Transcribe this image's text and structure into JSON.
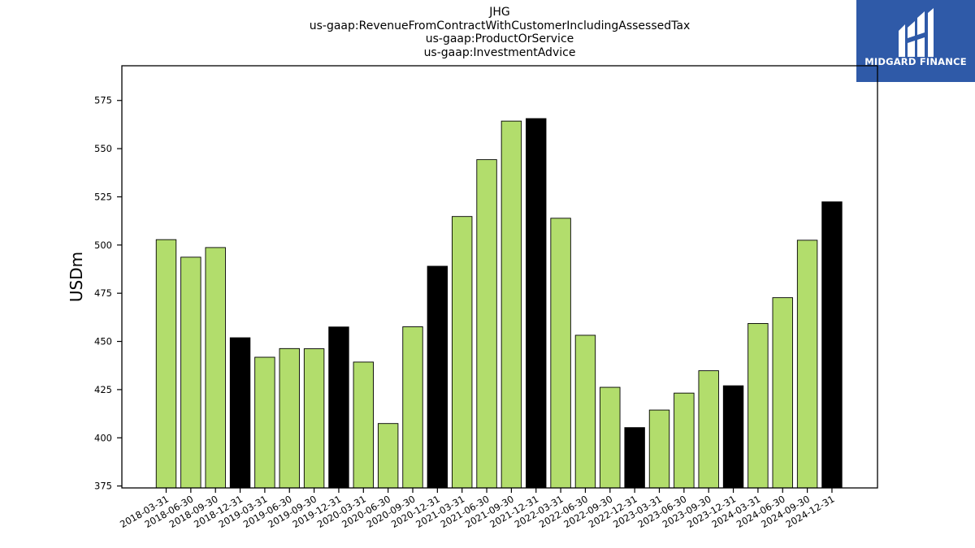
{
  "chart_data": {
    "type": "bar",
    "title_lines": [
      "JHG",
      "us-gaap:RevenueFromContractWithCustomerIncludingAssessedTax",
      "us-gaap:ProductOrService",
      "us-gaap:InvestmentAdvice"
    ],
    "xlabel": "",
    "ylabel": "USDm",
    "ylim": [
      374,
      593
    ],
    "yticks": [
      375,
      400,
      425,
      450,
      475,
      500,
      525,
      550,
      575
    ],
    "grid": false,
    "categories": [
      "2018-03-31",
      "2018-06-30",
      "2018-09-30",
      "2018-12-31",
      "2019-03-31",
      "2019-06-30",
      "2019-09-30",
      "2019-12-31",
      "2020-03-31",
      "2020-06-30",
      "2020-09-30",
      "2020-12-31",
      "2021-03-31",
      "2021-06-30",
      "2021-09-30",
      "2021-12-31",
      "2022-03-31",
      "2022-06-30",
      "2022-09-30",
      "2022-12-31",
      "2023-03-31",
      "2023-06-30",
      "2023-09-30",
      "2023-12-31",
      "2024-03-31",
      "2024-06-30",
      "2024-09-30",
      "2024-12-31"
    ],
    "values": [
      502.8,
      493.7,
      498.7,
      451.9,
      441.8,
      446.3,
      446.2,
      457.5,
      439.3,
      407.4,
      457.6,
      489.0,
      514.8,
      544.3,
      564.3,
      565.6,
      513.9,
      453.2,
      426.2,
      405.3,
      414.4,
      423.2,
      434.8,
      427.0,
      459.3,
      472.7,
      502.5,
      522.4
    ],
    "bar_colors": [
      "#b2dd6c",
      "#b2dd6c",
      "#b2dd6c",
      "#000000",
      "#b2dd6c",
      "#b2dd6c",
      "#b2dd6c",
      "#000000",
      "#b2dd6c",
      "#b2dd6c",
      "#b2dd6c",
      "#000000",
      "#b2dd6c",
      "#b2dd6c",
      "#b2dd6c",
      "#000000",
      "#b2dd6c",
      "#b2dd6c",
      "#b2dd6c",
      "#000000",
      "#b2dd6c",
      "#b2dd6c",
      "#b2dd6c",
      "#000000",
      "#b2dd6c",
      "#b2dd6c",
      "#b2dd6c",
      "#000000"
    ],
    "colors": {
      "quarter_bar": "#b2dd6c",
      "year_end_bar": "#000000",
      "bar_edge": "#000000"
    }
  },
  "logo": {
    "text": "MIDGARD FINANCE",
    "background": "#2f5aa8"
  }
}
